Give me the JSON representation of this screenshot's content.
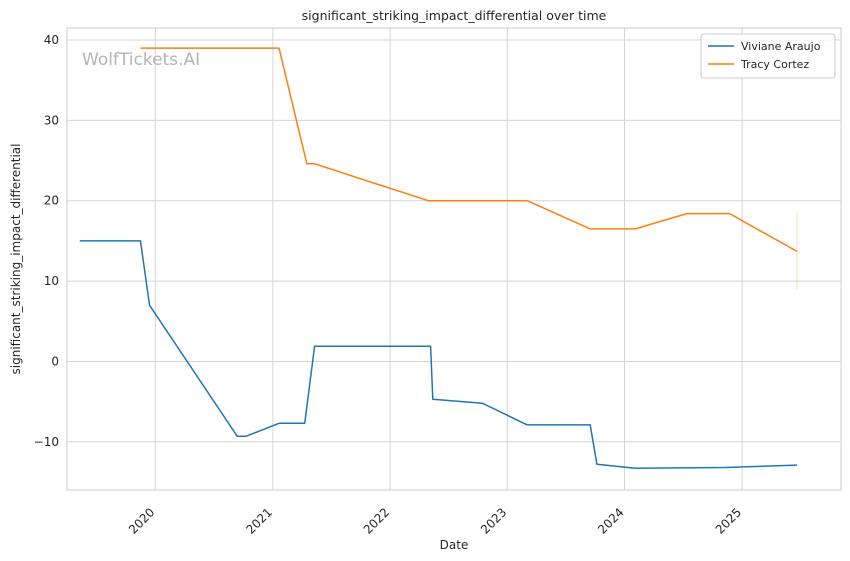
{
  "chart_data": {
    "type": "line",
    "title": "significant_striking_impact_differential over time",
    "xlabel": "Date",
    "ylabel": "significant_striking_impact_differential",
    "watermark": "WolfTickets.AI",
    "x_ticks": [
      "2020",
      "2021",
      "2022",
      "2023",
      "2024",
      "2025"
    ],
    "y_ticks": [
      -10,
      0,
      10,
      20,
      30,
      40
    ],
    "xlim": [
      "2019-04-01",
      "2025-11-05"
    ],
    "ylim": [
      -16,
      41.5
    ],
    "grid": true,
    "legend_position": "top-right",
    "series": [
      {
        "name": "Viviane Araujo",
        "color": "#1f77b4",
        "points": [
          [
            "2019-05-11",
            15
          ],
          [
            "2019-11-16",
            15
          ],
          [
            "2019-12-14",
            7
          ],
          [
            "2020-09-12",
            -9.3
          ],
          [
            "2020-10-10",
            -9.3
          ],
          [
            "2021-01-20",
            -7.7
          ],
          [
            "2021-04-10",
            -7.7
          ],
          [
            "2021-05-11",
            1.9
          ],
          [
            "2022-05-07",
            1.9
          ],
          [
            "2022-05-14",
            -4.7
          ],
          [
            "2022-10-15",
            -5.2
          ],
          [
            "2023-03-04",
            -7.9
          ],
          [
            "2023-09-16",
            -7.9
          ],
          [
            "2023-10-07",
            -12.8
          ],
          [
            "2024-02-03",
            -13.3
          ],
          [
            "2024-11-09",
            -13.2
          ],
          [
            "2025-06-21",
            -12.9
          ]
        ]
      },
      {
        "name": "Tracy Cortez",
        "color": "#ff7f0e",
        "points": [
          [
            "2019-11-16",
            39
          ],
          [
            "2021-01-20",
            39
          ],
          [
            "2021-04-17",
            24.6
          ],
          [
            "2021-05-11",
            24.6
          ],
          [
            "2022-04-30",
            20
          ],
          [
            "2023-03-04",
            20
          ],
          [
            "2023-09-16",
            16.5
          ],
          [
            "2024-02-03",
            16.5
          ],
          [
            "2024-07-13",
            18.4
          ],
          [
            "2024-11-23",
            18.4
          ],
          [
            "2025-06-21",
            13.7
          ]
        ],
        "error_bar": {
          "x": "2025-06-21",
          "low": 9,
          "high": 18.5
        }
      }
    ]
  }
}
